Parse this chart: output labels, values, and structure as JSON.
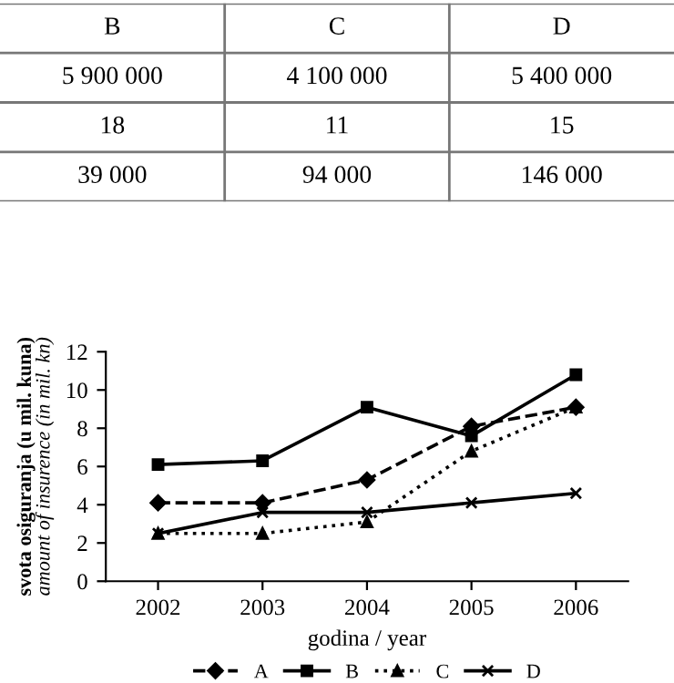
{
  "chart_data": [
    {
      "type": "other",
      "categories": [
        "B",
        "C",
        "D"
      ],
      "cell_labels": [
        [
          "5 900 000",
          "4 100 000",
          "5 400 000"
        ],
        [
          "18",
          "11",
          "15"
        ],
        [
          "39 000",
          "94 000",
          "146 000"
        ]
      ]
    },
    {
      "type": "line",
      "categories": [
        "2002",
        "2003",
        "2004",
        "2005",
        "2006"
      ],
      "xlabel": "godina / year",
      "ylabel": "svota osiguranja (u mil. kuna)\namount of insurence (in mil. kn)",
      "ylim": [
        0,
        12
      ],
      "yticks": [
        0,
        2,
        4,
        6,
        8,
        10,
        12
      ],
      "grid": false,
      "legend": "bottom",
      "series": [
        {
          "name": "A",
          "color": "#000000",
          "marker": "diamond",
          "line_style": "dashed",
          "values": [
            4.1,
            4.1,
            5.3,
            8.1,
            9.1
          ]
        },
        {
          "name": "B",
          "color": "#000000",
          "marker": "square",
          "line_style": "solid",
          "values": [
            6.1,
            6.3,
            9.1,
            7.6,
            10.8
          ]
        },
        {
          "name": "C",
          "color": "#000000",
          "marker": "triangle",
          "line_style": "dotted",
          "values": [
            2.5,
            2.5,
            3.1,
            6.8,
            9.1
          ]
        },
        {
          "name": "D",
          "color": "#000000",
          "marker": "cross",
          "line_style": "solid",
          "values": [
            2.5,
            3.6,
            3.6,
            4.1,
            4.6
          ]
        }
      ]
    }
  ]
}
